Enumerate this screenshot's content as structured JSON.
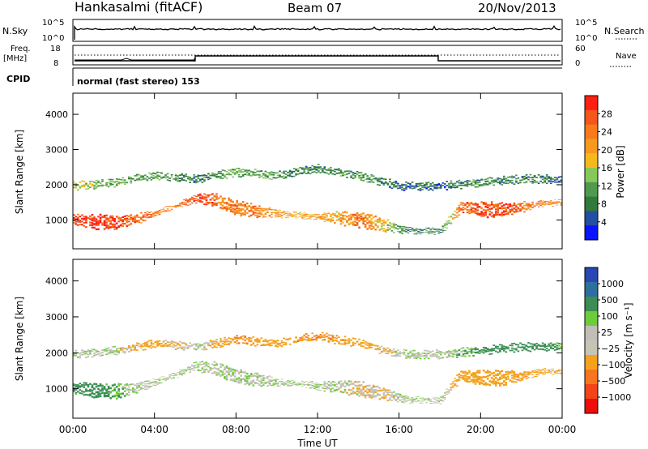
{
  "header": {
    "station": "Hankasalmi (fitACF)",
    "beam": "Beam 07",
    "date": "20/Nov/2013"
  },
  "top_panels": {
    "nsky_label": "N.Sky",
    "nsearch_label": "N.Search",
    "nsky_ticks": [
      "10^5",
      "10^0"
    ],
    "nsearch_ticks": [
      "10^5",
      "10^0"
    ],
    "freq_label_1": "Freq.",
    "freq_label_2": "[MHz]",
    "freq_ticks": [
      "18",
      "8"
    ],
    "nave_label": "Nave",
    "nave_ticks": [
      "60",
      "0"
    ],
    "cpid_label": "CPID",
    "cpid_text": "normal (fast stereo) 153"
  },
  "colorbars": {
    "power": {
      "label": "Power [dB]",
      "ticks": [
        "28",
        "24",
        "20",
        "16",
        "12",
        "8",
        "4"
      ],
      "colors": [
        "#0a14ff",
        "#234fa0",
        "#2f7a3c",
        "#4f9a4f",
        "#88c85a",
        "#f6b81c",
        "#f7991d",
        "#f77b1a",
        "#f5561a",
        "#ff1e12"
      ]
    },
    "velocity": {
      "label": "Velocity [m s⁻¹]",
      "ticks": [
        "1000",
        "500",
        "100",
        "25",
        "−25",
        "−100",
        "−500",
        "−1000"
      ],
      "colors": [
        "#2846b4",
        "#2f6f9e",
        "#3a8e54",
        "#6ecc3a",
        "#bfbfb7",
        "#c7c4b4",
        "#f4a21c",
        "#f7751e",
        "#f24418",
        "#ee0d0d"
      ]
    }
  },
  "chart_data": [
    {
      "type": "heatmap",
      "title": "Power",
      "ylabel": "Slant Range [km]",
      "ylim": [
        180,
        4600
      ],
      "yticks": [
        "4000",
        "3000",
        "2000",
        "1000"
      ],
      "xlim_hours": [
        0,
        24
      ],
      "series": [
        {
          "name": "lower band",
          "x": [
            0,
            1,
            2,
            3,
            4,
            5,
            6,
            7,
            8,
            9,
            10,
            11,
            12,
            13,
            14,
            15,
            16,
            17,
            18,
            19,
            20,
            21,
            22,
            23,
            24
          ],
          "y": [
            1050,
            1000,
            980,
            1050,
            1200,
            1400,
            1650,
            1600,
            1400,
            1300,
            1200,
            1150,
            1100,
            1100,
            1050,
            950,
            750,
            700,
            700,
            1400,
            1350,
            1350,
            1400,
            1500,
            1500
          ],
          "value": [
            28,
            30,
            28,
            26,
            24,
            24,
            28,
            26,
            24,
            24,
            22,
            20,
            22,
            20,
            24,
            20,
            12,
            10,
            10,
            26,
            28,
            28,
            26,
            24,
            22
          ]
        },
        {
          "name": "upper band",
          "x": [
            0,
            2,
            4,
            6,
            8,
            10,
            12,
            14,
            16,
            18,
            20,
            22,
            24
          ],
          "y": [
            2000,
            2100,
            2300,
            2200,
            2400,
            2300,
            2500,
            2300,
            2000,
            2000,
            2100,
            2200,
            2200
          ],
          "value": [
            16,
            14,
            12,
            10,
            14,
            12,
            10,
            12,
            8,
            8,
            12,
            10,
            8
          ]
        }
      ]
    },
    {
      "type": "heatmap",
      "title": "Velocity",
      "ylabel": "Slant Range [km]",
      "xlabel": "Time UT",
      "ylim": [
        180,
        4600
      ],
      "yticks": [
        "4000",
        "3000",
        "2000",
        "1000"
      ],
      "xticks": [
        "00:00",
        "04:00",
        "08:00",
        "12:00",
        "16:00",
        "20:00",
        "00:00"
      ],
      "xlim_hours": [
        0,
        24
      ],
      "series": [
        {
          "name": "lower band",
          "x": [
            0,
            1,
            2,
            3,
            4,
            5,
            6,
            7,
            8,
            9,
            10,
            11,
            12,
            13,
            14,
            15,
            16,
            17,
            18,
            19,
            20,
            21,
            22,
            23,
            24
          ],
          "y": [
            1050,
            1000,
            980,
            1050,
            1200,
            1400,
            1650,
            1600,
            1400,
            1300,
            1200,
            1150,
            1100,
            1100,
            1050,
            950,
            750,
            700,
            700,
            1400,
            1350,
            1350,
            1400,
            1500,
            1500
          ],
          "value": [
            150,
            200,
            100,
            0,
            0,
            0,
            0,
            0,
            0,
            0,
            0,
            0,
            0,
            0,
            -50,
            -80,
            0,
            0,
            0,
            -200,
            -150,
            -200,
            -250,
            -150,
            -100
          ]
        },
        {
          "name": "upper band",
          "x": [
            0,
            2,
            4,
            6,
            8,
            10,
            12,
            14,
            16,
            18,
            20,
            22,
            24
          ],
          "y": [
            2000,
            2100,
            2300,
            2200,
            2400,
            2300,
            2500,
            2300,
            2000,
            2000,
            2100,
            2200,
            2200
          ],
          "value": [
            0,
            0,
            -200,
            0,
            -300,
            -200,
            -300,
            -200,
            0,
            0,
            150,
            200,
            100
          ]
        }
      ]
    }
  ]
}
